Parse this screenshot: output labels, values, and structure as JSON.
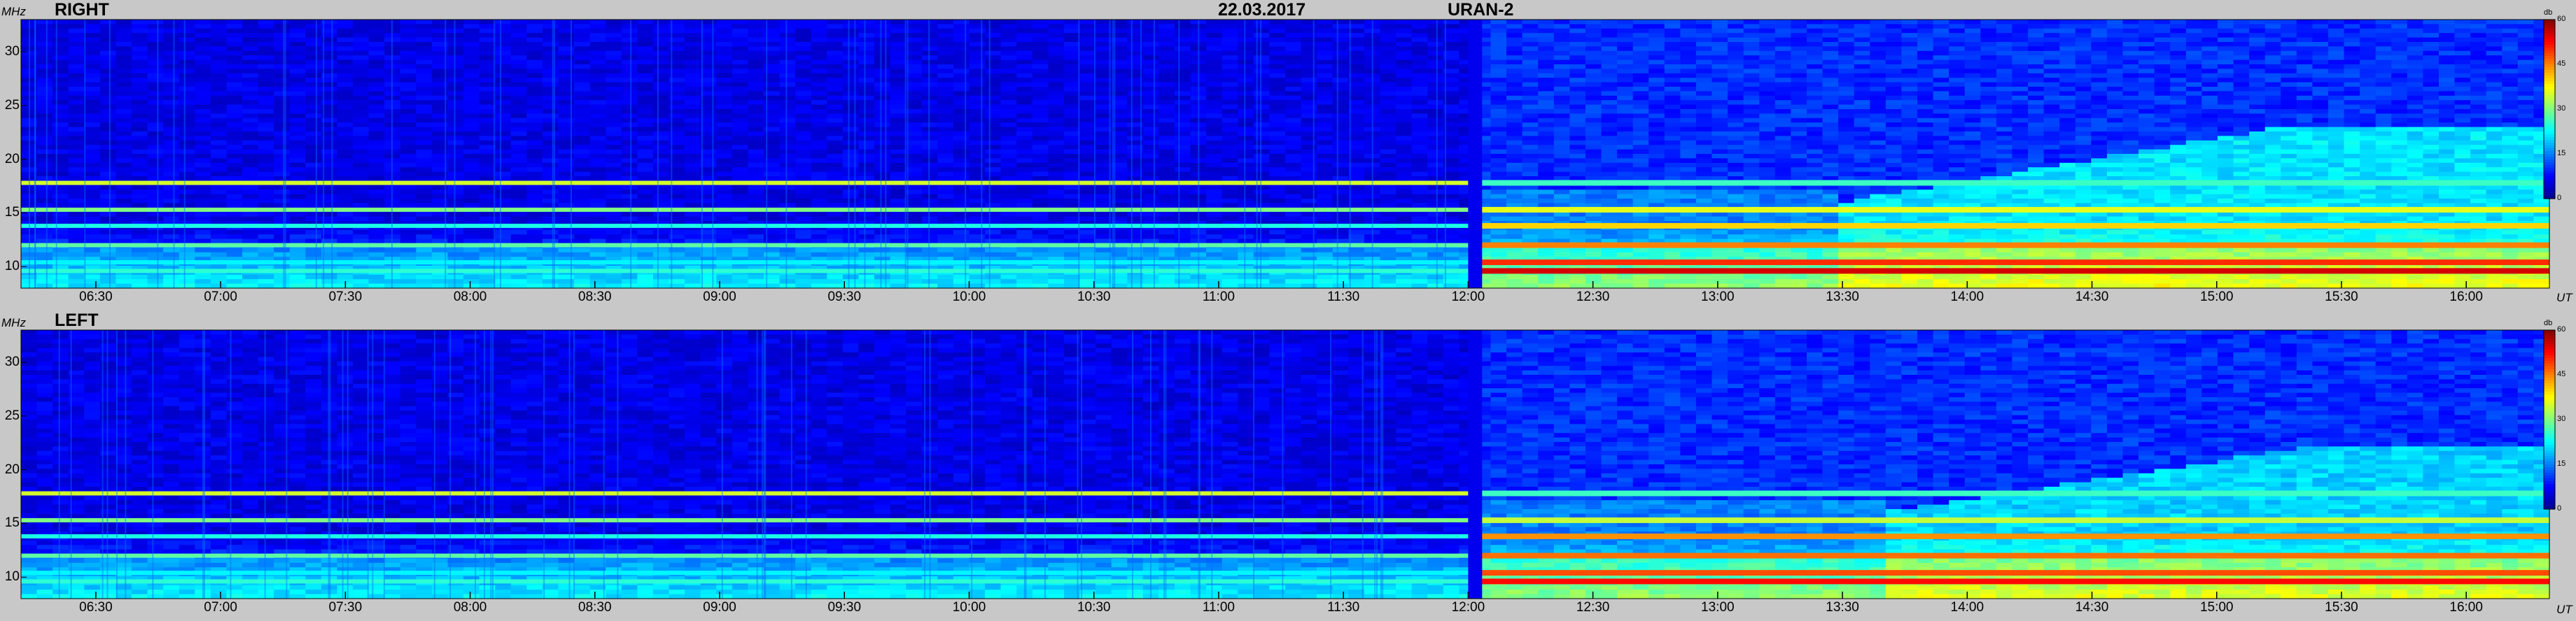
{
  "header": {
    "date": "22.03.2017",
    "instrument": "URAN-2"
  },
  "colors": {
    "background": "#c8c8c8",
    "colormap": [
      "#00008f",
      "#0000ff",
      "#0080ff",
      "#00ffff",
      "#80ff80",
      "#ffff00",
      "#ff8000",
      "#ff0000",
      "#800000"
    ]
  },
  "chart_data": [
    {
      "type": "heatmap",
      "title": "RIGHT",
      "xlabel": "UT",
      "ylabel": "MHz",
      "x_ticks": [
        "06:30",
        "07:00",
        "07:30",
        "08:00",
        "08:30",
        "09:00",
        "09:30",
        "10:00",
        "10:30",
        "11:00",
        "11:30",
        "12:00",
        "12:30",
        "13:00",
        "13:30",
        "14:00",
        "14:30",
        "15:00",
        "15:30",
        "16:00"
      ],
      "y_ticks": [
        10,
        15,
        20,
        25,
        30
      ],
      "ylim": [
        8,
        33
      ],
      "xlim": [
        "06:12",
        "16:20"
      ],
      "colorbar": {
        "label": "db",
        "ticks": [
          0,
          15,
          30,
          45,
          60
        ],
        "range": [
          0,
          60
        ]
      },
      "data_gap": {
        "start": "12:00",
        "end": "12:02"
      },
      "bands": [
        {
          "freq_mhz": 9.6,
          "before_gap_db": 25,
          "after_gap_db": 55
        },
        {
          "freq_mhz": 10.4,
          "before_gap_db": 22,
          "after_gap_db": 50
        },
        {
          "freq_mhz": 12.0,
          "before_gap_db": 28,
          "after_gap_db": 45
        },
        {
          "freq_mhz": 13.8,
          "before_gap_db": 24,
          "after_gap_db": 40
        },
        {
          "freq_mhz": 15.3,
          "before_gap_db": 30,
          "after_gap_db": 36
        },
        {
          "freq_mhz": 17.8,
          "before_gap_db": 35,
          "after_gap_db": 26
        }
      ],
      "enhanced_emission": {
        "start": "13:30",
        "end": "16:20",
        "top_freq_mhz": 23,
        "level_db": 20
      }
    },
    {
      "type": "heatmap",
      "title": "LEFT",
      "xlabel": "UT",
      "ylabel": "MHz",
      "x_ticks": [
        "06:30",
        "07:00",
        "07:30",
        "08:00",
        "08:30",
        "09:00",
        "09:30",
        "10:00",
        "10:30",
        "11:00",
        "11:30",
        "12:00",
        "12:30",
        "13:00",
        "13:30",
        "14:00",
        "14:30",
        "15:00",
        "15:30",
        "16:00"
      ],
      "y_ticks": [
        10,
        15,
        20,
        25,
        30
      ],
      "ylim": [
        8,
        33
      ],
      "xlim": [
        "06:12",
        "16:20"
      ],
      "colorbar": {
        "label": "db",
        "ticks": [
          0,
          15,
          30,
          45,
          60
        ],
        "range": [
          0,
          60
        ]
      },
      "data_gap": {
        "start": "12:00",
        "end": "12:02"
      },
      "bands": [
        {
          "freq_mhz": 9.6,
          "before_gap_db": 25,
          "after_gap_db": 52
        },
        {
          "freq_mhz": 10.4,
          "before_gap_db": 22,
          "after_gap_db": 48
        },
        {
          "freq_mhz": 12.0,
          "before_gap_db": 28,
          "after_gap_db": 46
        },
        {
          "freq_mhz": 13.8,
          "before_gap_db": 24,
          "after_gap_db": 44
        },
        {
          "freq_mhz": 15.3,
          "before_gap_db": 30,
          "after_gap_db": 34
        },
        {
          "freq_mhz": 17.8,
          "before_gap_db": 35,
          "after_gap_db": 26
        }
      ],
      "enhanced_emission": {
        "start": "13:40",
        "end": "16:20",
        "top_freq_mhz": 22,
        "level_db": 18
      }
    }
  ]
}
